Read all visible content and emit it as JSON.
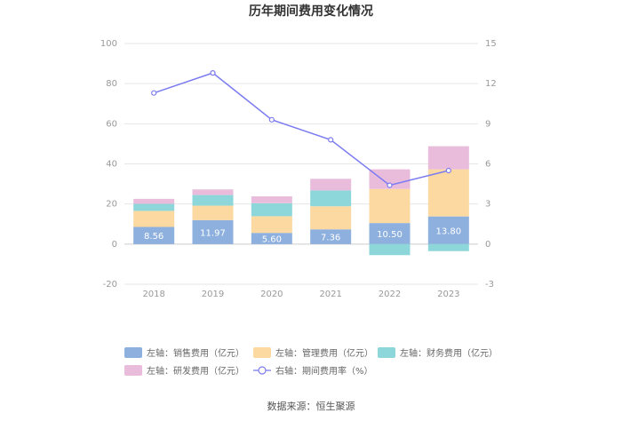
{
  "chart_data": {
    "type": "bar",
    "title": "历年期间费用变化情况",
    "categories": [
      "2018",
      "2019",
      "2020",
      "2021",
      "2022",
      "2023"
    ],
    "stacked": true,
    "y_left": {
      "ylim": [
        -20,
        100
      ],
      "ticks": [
        "100",
        "80",
        "60",
        "40",
        "20",
        "0",
        "-20"
      ]
    },
    "y_right": {
      "ylim": [
        -3,
        15
      ],
      "ticks": [
        "15",
        "12",
        "9",
        "6",
        "3",
        "0",
        "-3"
      ]
    },
    "series": [
      {
        "name": "左轴：销售费用（亿元）",
        "axis": "left",
        "color": "#8eb0de",
        "values": [
          8.56,
          11.97,
          5.6,
          7.36,
          10.5,
          13.8
        ],
        "labels": [
          "8.56",
          "11.97",
          "5.60",
          "7.36",
          "10.50",
          "13.80"
        ]
      },
      {
        "name": "左轴：管理费用（亿元）",
        "axis": "left",
        "color": "#fcd9a1",
        "values": [
          8.0,
          7.2,
          8.3,
          11.5,
          17.0,
          23.5
        ]
      },
      {
        "name": "左轴：财务费用（亿元）",
        "axis": "left",
        "color": "#8dd7db",
        "values": [
          3.5,
          5.3,
          6.5,
          7.9,
          -5.5,
          -3.5
        ]
      },
      {
        "name": "左轴：研发费用（亿元）",
        "axis": "left",
        "color": "#e9bcdc",
        "values": [
          2.5,
          2.8,
          3.4,
          5.8,
          9.8,
          11.5
        ]
      },
      {
        "name": "右轴：期间费用率（%）",
        "axis": "right",
        "type": "line",
        "color": "#7b7bf0",
        "values": [
          11.3,
          12.8,
          9.3,
          7.8,
          4.4,
          5.5
        ]
      }
    ],
    "grid": true,
    "legend_position": "bottom"
  },
  "source": "数据来源：恒生聚源"
}
